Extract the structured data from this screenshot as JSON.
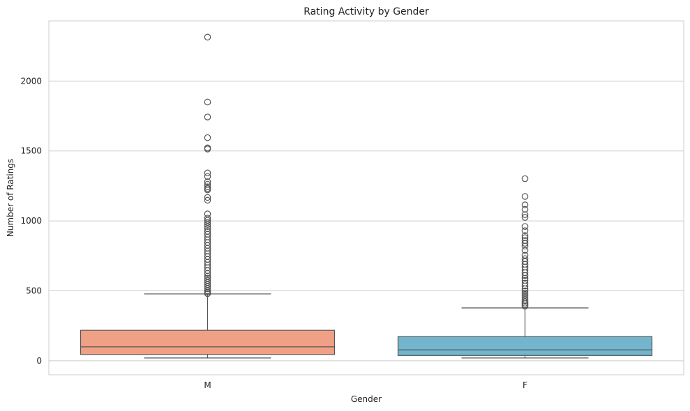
{
  "chart_data": {
    "type": "box",
    "title": "Rating Activity by Gender",
    "xlabel": "Gender",
    "ylabel": "Number of Ratings",
    "ylim": [
      -100,
      2430
    ],
    "yticks": [
      0,
      500,
      1000,
      1500,
      2000
    ],
    "ytick_labels": [
      "0",
      "500",
      "1000",
      "1500",
      "2000"
    ],
    "grid": true,
    "categories": [
      "M",
      "F"
    ],
    "boxes": [
      {
        "category": "M",
        "color": "#f0a185",
        "whisker_low": 20,
        "q1": 45,
        "median": 100,
        "q3": 218,
        "whisker_high": 478,
        "outliers": [
          2314,
          1850,
          1743,
          1595,
          1522,
          1514,
          1343,
          1318,
          1280,
          1262,
          1244,
          1232,
          1222,
          1168,
          1148,
          1050,
          1020,
          1005,
          990,
          975,
          960,
          945,
          925,
          905,
          885,
          865,
          845,
          825,
          805,
          785,
          765,
          745,
          725,
          705,
          685,
          665,
          645,
          625,
          605,
          590,
          575,
          560,
          545,
          530,
          515,
          500,
          490,
          480
        ]
      },
      {
        "category": "F",
        "color": "#72b5cd",
        "whisker_low": 20,
        "q1": 38,
        "median": 78,
        "q3": 173,
        "whisker_high": 378,
        "outliers": [
          1302,
          1175,
          1115,
          1083,
          1045,
          1025,
          960,
          930,
          895,
          880,
          860,
          840,
          820,
          790,
          755,
          730,
          710,
          690,
          670,
          650,
          630,
          610,
          590,
          575,
          555,
          535,
          515,
          500,
          485,
          470,
          455,
          440,
          425,
          412,
          400,
          390
        ]
      }
    ]
  }
}
